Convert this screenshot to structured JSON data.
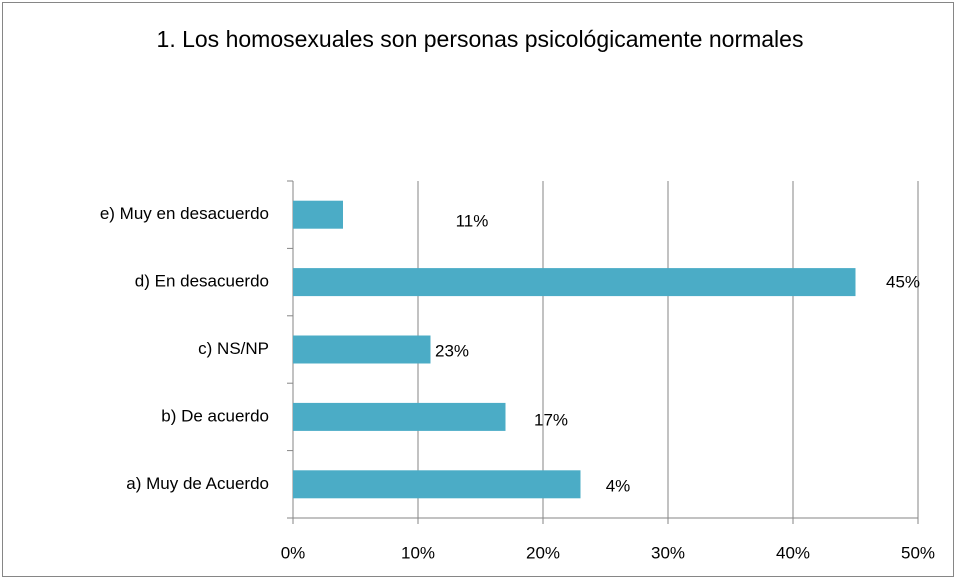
{
  "chart_data": {
    "type": "barh",
    "title": "1. Los homosexuales son personas psicológicamente normales",
    "categories": [
      "a) Muy de Acuerdo",
      "b) De acuerdo",
      "c) NS/NP",
      "d) En desacuerdo",
      "e) Muy en desacuerdo"
    ],
    "values": [
      23,
      17,
      11,
      45,
      4
    ],
    "color": "#4bacc6",
    "annotations": [
      "4%",
      "17%",
      "23%",
      "45%",
      "11%"
    ],
    "xlim": [
      0,
      50
    ],
    "xticks": [
      {
        "value": 0,
        "label": "0%"
      },
      {
        "value": 10,
        "label": "10%"
      },
      {
        "value": 20,
        "label": "20%"
      },
      {
        "value": 30,
        "label": "30%"
      },
      {
        "value": 40,
        "label": "40%"
      },
      {
        "value": 50,
        "label": "50%"
      }
    ],
    "grid": true
  }
}
